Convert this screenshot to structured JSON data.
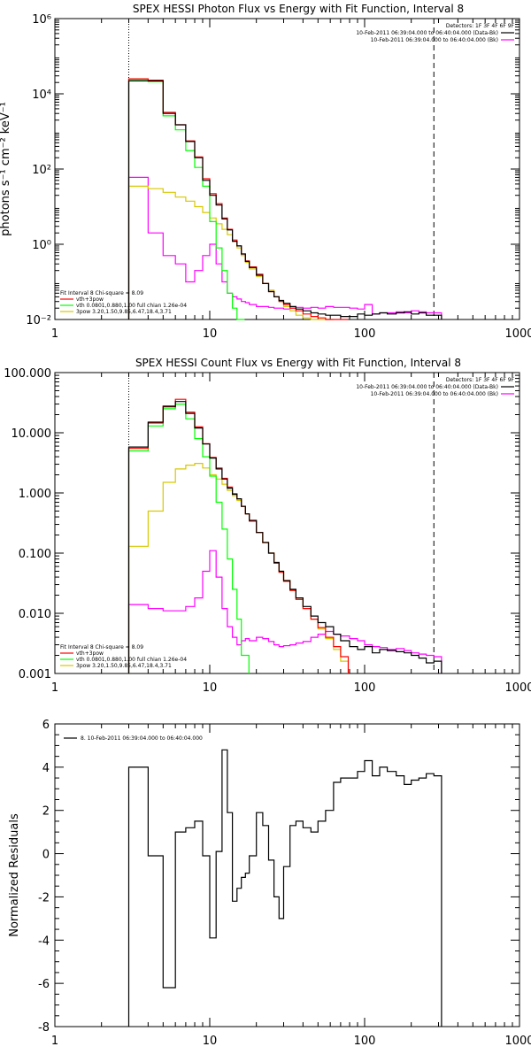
{
  "chart_data": [
    {
      "type": "line",
      "title": "SPEX HESSI Photon Flux vs Energy with Fit Function, Interval 8",
      "xlabel": "",
      "ylabel": "photons s⁻¹ cm⁻² keV⁻¹",
      "xscale": "log",
      "yscale": "log",
      "xlim": [
        1,
        1000
      ],
      "ylim": [
        0.01,
        1000000
      ],
      "x_tick_labels": [
        "1",
        "10",
        "100",
        "1000"
      ],
      "y_tick_labels": [
        "10⁻²",
        "10⁰",
        "10²",
        "10⁴",
        "10⁶"
      ],
      "legend_right": {
        "header": "Detectors: 1F 3F 4F 6F 9F",
        "entries": [
          {
            "label": "10-Feb-2011 06:39:04.000 to 06:40:04.000 (Data-Bk)",
            "color": "#000000"
          },
          {
            "label": "10-Feb-2011 06:39:04.000 to 06:40:04.000 (Bk)",
            "color": "#ff00ff"
          }
        ]
      },
      "legend_left": {
        "header": "Fit Interval 8   Chi-square = 8.09",
        "entries": [
          {
            "label": "vth+3pow",
            "color": "#ff0000"
          },
          {
            "label": "vth 0.0801,0.880,1.00  full chian 1.26e-04",
            "color": "#00ff00"
          },
          {
            "label": "3pow 3.20,1.50,9.85,6.47,18.4,3.71",
            "color": "#ffff00"
          }
        ]
      },
      "markers": [
        {
          "style": "dotted",
          "x": 3
        },
        {
          "style": "dashed",
          "x": 280
        }
      ],
      "series": [
        {
          "role": "data",
          "color": "#000000",
          "x": [
            3,
            4,
            5,
            6,
            7,
            8,
            9,
            10,
            11,
            12,
            13,
            14,
            15,
            16,
            17,
            18,
            20,
            22,
            24,
            26,
            28,
            30,
            33,
            36,
            40,
            45,
            50,
            56,
            63,
            70,
            80,
            90,
            100,
            112,
            125,
            140,
            160,
            180,
            200,
            224,
            250,
            280
          ],
          "values": [
            22000,
            22000,
            3000,
            1500,
            540,
            200,
            50,
            20,
            11,
            4.7,
            2.4,
            1.2,
            0.9,
            0.55,
            0.35,
            0.24,
            0.15,
            0.09,
            0.055,
            0.04,
            0.032,
            0.027,
            0.022,
            0.019,
            0.017,
            0.015,
            0.014,
            0.013,
            0.013,
            0.012,
            0.012,
            0.014,
            0.013,
            0.014,
            0.015,
            0.014,
            0.015,
            0.016,
            0.014,
            0.015,
            0.013,
            0.013
          ]
        },
        {
          "role": "model",
          "color": "#ff0000",
          "x": [
            3,
            4,
            5,
            6,
            7,
            8,
            9,
            10,
            11,
            12,
            13,
            14,
            15,
            16,
            17,
            18,
            20,
            22,
            24,
            26,
            28,
            30,
            33,
            36,
            40,
            45,
            50,
            56,
            63,
            70
          ],
          "values": [
            25000,
            23000,
            3200,
            1500,
            560,
            210,
            55,
            22,
            12,
            5,
            2.5,
            1.3,
            0.9,
            0.55,
            0.36,
            0.25,
            0.16,
            0.09,
            0.055,
            0.04,
            0.03,
            0.025,
            0.02,
            0.017,
            0.014,
            0.012,
            0.011,
            0.01,
            0.009,
            0.008
          ]
        },
        {
          "role": "thermal",
          "color": "#00ff00",
          "x": [
            3,
            4,
            5,
            6,
            7,
            8,
            9,
            10,
            11,
            12,
            13,
            14,
            15
          ],
          "values": [
            24000,
            21000,
            2600,
            1100,
            310,
            110,
            35,
            4,
            0.8,
            0.2,
            0.05,
            0.02,
            0.008
          ]
        },
        {
          "role": "power-law",
          "color": "#ffff00",
          "x": [
            3,
            4,
            5,
            6,
            7,
            8,
            9,
            10,
            11,
            12,
            13,
            14,
            15,
            16,
            17,
            18,
            20,
            22,
            24,
            26,
            28,
            30,
            33,
            36,
            40,
            45,
            50,
            56
          ],
          "values": [
            35,
            30,
            24,
            18,
            14,
            10,
            7,
            5,
            3.5,
            2.5,
            1.8,
            1.2,
            0.8,
            0.5,
            0.33,
            0.22,
            0.14,
            0.09,
            0.06,
            0.04,
            0.03,
            0.022,
            0.017,
            0.013,
            0.011,
            0.01,
            0.009,
            0.008
          ]
        },
        {
          "role": "background",
          "color": "#ff00ff",
          "x": [
            3,
            4,
            5,
            6,
            7,
            8,
            9,
            10,
            11,
            12,
            13,
            14,
            15,
            16,
            17,
            18,
            20,
            22,
            24,
            26,
            28,
            30,
            33,
            36,
            40,
            45,
            50,
            56,
            63,
            70,
            80,
            90,
            100,
            112,
            125,
            140,
            160,
            180,
            200,
            224,
            250,
            280
          ],
          "values": [
            60,
            2,
            0.5,
            0.3,
            0.1,
            0.2,
            0.5,
            1.0,
            0.3,
            0.1,
            0.05,
            0.04,
            0.035,
            0.03,
            0.028,
            0.025,
            0.022,
            0.022,
            0.021,
            0.02,
            0.02,
            0.019,
            0.02,
            0.021,
            0.02,
            0.021,
            0.02,
            0.022,
            0.021,
            0.021,
            0.02,
            0.019,
            0.025,
            0.014,
            0.015,
            0.015,
            0.016,
            0.015,
            0.017,
            0.016,
            0.015,
            0.015
          ]
        }
      ]
    },
    {
      "type": "line",
      "title": "SPEX HESSI Count Flux vs Energy with Fit Function, Interval 8",
      "xlabel": "",
      "ylabel": "",
      "xscale": "log",
      "yscale": "log",
      "xlim": [
        1,
        1000
      ],
      "ylim": [
        0.001,
        100
      ],
      "x_tick_labels": [
        "1",
        "10",
        "100",
        "1000"
      ],
      "y_tick_labels": [
        "0.001",
        "0.010",
        "0.100",
        "1.000",
        "10.000",
        "100.000"
      ],
      "legend_right": {
        "header": "Detectors: 1F 3F 4F 6F 9F",
        "entries": [
          {
            "label": "10-Feb-2011 06:39:04.000 to 06:40:04.000 (Data-Bk)",
            "color": "#000000"
          },
          {
            "label": "10-Feb-2011 06:39:04.000 to 06:40:04.000 (Bk)",
            "color": "#ff00ff"
          }
        ]
      },
      "legend_left": {
        "header": "Fit Interval 8   Chi-square = 8.09",
        "entries": [
          {
            "label": "vth+3pow",
            "color": "#ff0000"
          },
          {
            "label": "vth 0.0801,0.880,1.00  full chian 1.26e-04",
            "color": "#00ff00"
          },
          {
            "label": "3pow 3.20,1.50,9.85,6.47,18.4,3.71",
            "color": "#ffff00"
          }
        ]
      },
      "markers": [
        {
          "style": "dotted",
          "x": 3
        },
        {
          "style": "dashed",
          "x": 280
        }
      ],
      "series": [
        {
          "role": "data",
          "color": "#000000",
          "x": [
            3,
            4,
            5,
            6,
            7,
            8,
            9,
            10,
            11,
            12,
            13,
            14,
            15,
            16,
            17,
            18,
            20,
            22,
            24,
            26,
            28,
            30,
            33,
            36,
            40,
            45,
            50,
            56,
            63,
            70,
            80,
            90,
            100,
            112,
            125,
            140,
            160,
            180,
            200,
            224,
            250,
            280
          ],
          "values": [
            5.8,
            15,
            27,
            33,
            21,
            12,
            6.5,
            3.8,
            2.5,
            1.7,
            1.2,
            0.95,
            0.8,
            0.6,
            0.45,
            0.35,
            0.22,
            0.15,
            0.1,
            0.07,
            0.05,
            0.035,
            0.025,
            0.018,
            0.013,
            0.009,
            0.007,
            0.006,
            0.0045,
            0.0035,
            0.0028,
            0.0025,
            0.0028,
            0.0022,
            0.0025,
            0.0024,
            0.0023,
            0.0022,
            0.002,
            0.0018,
            0.0015,
            0.0016
          ]
        },
        {
          "role": "model",
          "color": "#ff0000",
          "x": [
            3,
            4,
            5,
            6,
            7,
            8,
            9,
            10,
            11,
            12,
            13,
            14,
            15,
            16,
            17,
            18,
            20,
            22,
            24,
            26,
            28,
            30,
            33,
            36,
            40,
            45,
            50,
            56,
            63,
            70
          ],
          "values": [
            5.5,
            14.5,
            28,
            36,
            22,
            12.5,
            6.6,
            3.9,
            2.6,
            1.75,
            1.25,
            0.97,
            0.8,
            0.6,
            0.45,
            0.34,
            0.22,
            0.15,
            0.1,
            0.068,
            0.048,
            0.034,
            0.024,
            0.017,
            0.012,
            0.008,
            0.0058,
            0.004,
            0.0028,
            0.0019
          ]
        },
        {
          "role": "thermal",
          "color": "#00ff00",
          "x": [
            3,
            4,
            5,
            6,
            7,
            8,
            9,
            10,
            11,
            12,
            13,
            14,
            15,
            16
          ],
          "values": [
            5,
            13,
            25,
            30,
            17,
            8,
            4,
            1.9,
            0.7,
            0.25,
            0.08,
            0.025,
            0.008,
            0.002
          ]
        },
        {
          "role": "power-law",
          "color": "#ffff00",
          "x": [
            3,
            4,
            5,
            6,
            7,
            8,
            9,
            10,
            11,
            12,
            13,
            14,
            15,
            16,
            17,
            18,
            20,
            22,
            24,
            26,
            28,
            30,
            33,
            36,
            40,
            45,
            50,
            56,
            63,
            70
          ],
          "values": [
            0.13,
            0.5,
            1.5,
            2.5,
            2.9,
            3.1,
            2.6,
            2.0,
            1.7,
            1.4,
            1.1,
            0.9,
            0.75,
            0.6,
            0.45,
            0.34,
            0.22,
            0.15,
            0.1,
            0.07,
            0.05,
            0.035,
            0.024,
            0.017,
            0.012,
            0.008,
            0.0055,
            0.0038,
            0.0025,
            0.0016
          ]
        },
        {
          "role": "background",
          "color": "#ff00ff",
          "x": [
            3,
            4,
            5,
            6,
            7,
            8,
            9,
            10,
            11,
            12,
            13,
            14,
            15,
            16,
            17,
            18,
            20,
            22,
            24,
            26,
            28,
            30,
            33,
            36,
            40,
            45,
            50,
            56,
            63,
            70,
            80,
            90,
            100,
            112,
            125,
            140,
            160,
            180,
            200,
            224,
            250,
            280
          ],
          "values": [
            0.014,
            0.012,
            0.011,
            0.011,
            0.013,
            0.018,
            0.05,
            0.11,
            0.04,
            0.012,
            0.006,
            0.004,
            0.003,
            0.0035,
            0.0038,
            0.0035,
            0.004,
            0.0038,
            0.0034,
            0.003,
            0.0028,
            0.0029,
            0.003,
            0.0032,
            0.0034,
            0.004,
            0.0045,
            0.005,
            0.0045,
            0.0042,
            0.0038,
            0.0035,
            0.003,
            0.0028,
            0.0027,
            0.0025,
            0.0026,
            0.0024,
            0.0022,
            0.0021,
            0.002,
            0.0019
          ]
        }
      ]
    },
    {
      "type": "line",
      "title": "",
      "xlabel": "",
      "ylabel": "Normalized Residuals",
      "xscale": "log",
      "yscale": "linear",
      "xlim": [
        1,
        1000
      ],
      "ylim": [
        -8,
        6
      ],
      "x_tick_labels": [
        "1",
        "10",
        "100",
        "1000"
      ],
      "y_tick_labels": [
        "-8",
        "-6",
        "-4",
        "-2",
        "0",
        "2",
        "4",
        "6"
      ],
      "legend": {
        "entries": [
          {
            "label": "8. 10-Feb-2011 06:39:04.000 to 06:40:04.000",
            "color": "#000000"
          }
        ]
      },
      "series": [
        {
          "role": "residuals",
          "color": "#000000",
          "x": [
            3,
            4,
            5,
            6,
            7,
            8,
            9,
            10,
            11,
            12,
            13,
            14,
            15,
            16,
            17,
            18,
            20,
            22,
            24,
            26,
            28,
            30,
            33,
            36,
            40,
            45,
            50,
            56,
            63,
            70,
            80,
            90,
            100,
            112,
            125,
            140,
            160,
            180,
            200,
            224,
            250,
            280
          ],
          "values": [
            4.0,
            -0.1,
            -6.2,
            1.0,
            1.2,
            1.5,
            -0.1,
            -3.9,
            0.1,
            4.8,
            1.9,
            -2.2,
            -1.6,
            -1.1,
            -0.9,
            -0.1,
            1.9,
            1.3,
            -0.3,
            -2.0,
            -3.0,
            -0.6,
            1.3,
            1.5,
            1.2,
            1.0,
            1.5,
            2.0,
            3.3,
            3.5,
            3.5,
            3.8,
            4.3,
            3.6,
            4.0,
            3.8,
            3.6,
            3.2,
            3.4,
            3.5,
            3.7,
            3.6
          ]
        }
      ]
    }
  ]
}
